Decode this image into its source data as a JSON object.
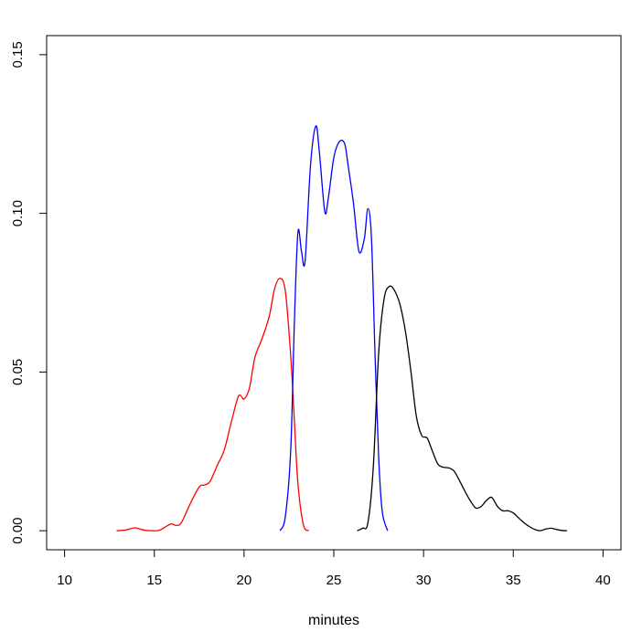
{
  "chart_data": {
    "type": "line",
    "title": "",
    "xlabel": "minutes",
    "ylabel": "",
    "xlim": [
      9,
      41
    ],
    "ylim": [
      -0.006,
      0.156
    ],
    "x_ticks": [
      10,
      15,
      20,
      25,
      30,
      35,
      40
    ],
    "x_tick_labels": [
      "10",
      "15",
      "20",
      "25",
      "30",
      "35",
      "40"
    ],
    "y_ticks": [
      0.0,
      0.05,
      0.1,
      0.15
    ],
    "y_tick_labels": [
      "0.00",
      "0.05",
      "0.10",
      "0.15"
    ],
    "grid": false,
    "legend": "none",
    "series": [
      {
        "color": "#ff0000",
        "x": [
          12.9,
          13.4,
          13.9,
          14.4,
          14.8,
          15.3,
          15.9,
          16.2,
          16.5,
          17.0,
          17.5,
          17.8,
          18.1,
          18.5,
          18.9,
          19.3,
          19.7,
          20.0,
          20.3,
          20.6,
          21.0,
          21.4,
          21.7,
          22.0,
          22.3,
          22.6,
          22.8,
          23.0,
          23.3,
          23.6
        ],
        "y": [
          0.0,
          0.0002,
          0.0009,
          0.0002,
          0.0,
          0.0002,
          0.0021,
          0.0017,
          0.0025,
          0.0085,
          0.0138,
          0.0144,
          0.0155,
          0.0205,
          0.0255,
          0.0345,
          0.0425,
          0.0415,
          0.045,
          0.0545,
          0.0605,
          0.0675,
          0.0762,
          0.0795,
          0.0755,
          0.055,
          0.035,
          0.015,
          0.002,
          0.0
        ]
      },
      {
        "color": "#0000ff",
        "x": [
          22.0,
          22.3,
          22.6,
          22.8,
          23.0,
          23.2,
          23.4,
          23.7,
          24.0,
          24.2,
          24.5,
          24.7,
          25.0,
          25.3,
          25.6,
          25.8,
          26.1,
          26.4,
          26.7,
          26.9,
          27.1,
          27.3,
          27.5,
          27.7,
          28.0
        ],
        "y": [
          0.0,
          0.0045,
          0.0255,
          0.065,
          0.094,
          0.088,
          0.085,
          0.115,
          0.1275,
          0.119,
          0.1005,
          0.105,
          0.1175,
          0.1225,
          0.122,
          0.115,
          0.103,
          0.088,
          0.092,
          0.1015,
          0.092,
          0.055,
          0.023,
          0.006,
          0.0
        ]
      },
      {
        "color": "#000000",
        "x": [
          26.3,
          26.6,
          26.9,
          27.2,
          27.5,
          27.8,
          28.1,
          28.4,
          28.7,
          29.0,
          29.3,
          29.6,
          29.9,
          30.2,
          30.5,
          30.8,
          31.1,
          31.4,
          31.7,
          32.0,
          32.3,
          32.6,
          32.9,
          33.2,
          33.5,
          33.8,
          34.1,
          34.4,
          34.7,
          35.0,
          35.3,
          35.6,
          35.9,
          36.2,
          36.5,
          36.8,
          37.1,
          37.4,
          37.7,
          38.0
        ],
        "y": [
          0.0,
          0.0008,
          0.0025,
          0.02,
          0.056,
          0.073,
          0.077,
          0.0755,
          0.071,
          0.0625,
          0.05,
          0.036,
          0.03,
          0.0292,
          0.025,
          0.021,
          0.02,
          0.0198,
          0.0188,
          0.0158,
          0.0125,
          0.0095,
          0.0072,
          0.0076,
          0.0095,
          0.0105,
          0.0078,
          0.0063,
          0.0063,
          0.0056,
          0.004,
          0.0025,
          0.0013,
          0.0004,
          0.0,
          0.0005,
          0.0008,
          0.0004,
          0.0001,
          0.0
        ]
      }
    ]
  }
}
